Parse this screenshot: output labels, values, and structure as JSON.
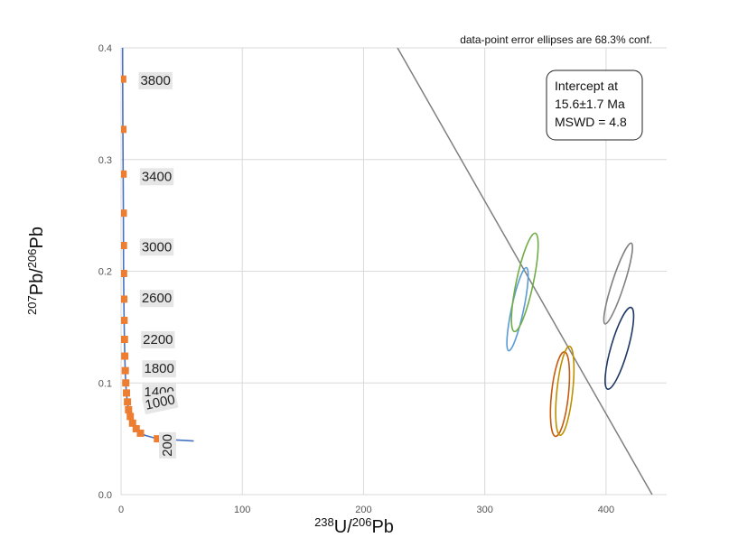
{
  "chart_data": {
    "type": "scatter",
    "title": "",
    "note": "data-point error ellipses are 68.3% conf.",
    "xlabel": {
      "sup1": "238",
      "base1": "U/",
      "sup2": "206",
      "base2": "Pb"
    },
    "ylabel": {
      "sup1": "207",
      "base1": "Pb/",
      "sup2": "206",
      "base2": "Pb"
    },
    "xlim": [
      0,
      450
    ],
    "ylim": [
      0,
      0.4
    ],
    "x_ticks": [
      0,
      100,
      200,
      300,
      400
    ],
    "y_ticks": [
      0.0,
      0.1,
      0.2,
      0.3,
      0.4
    ],
    "y_tick_labels": [
      "0.0",
      "0.1",
      "0.2",
      "0.3",
      "0.4"
    ],
    "grid": true,
    "concordia_curve": {
      "color": "#4472c4",
      "points": [
        [
          1.3,
          0.4
        ],
        [
          1.35,
          0.37
        ],
        [
          1.5,
          0.33
        ],
        [
          1.7,
          0.29
        ],
        [
          1.9,
          0.25
        ],
        [
          2.0,
          0.22
        ],
        [
          2.1,
          0.2
        ],
        [
          2.3,
          0.175
        ],
        [
          2.5,
          0.155
        ],
        [
          2.8,
          0.137
        ],
        [
          3.1,
          0.122
        ],
        [
          3.5,
          0.109
        ],
        [
          3.9,
          0.1
        ],
        [
          4.5,
          0.09
        ],
        [
          5.3,
          0.082
        ],
        [
          6.2,
          0.076
        ],
        [
          7.6,
          0.07
        ],
        [
          9.5,
          0.064
        ],
        [
          12.5,
          0.058
        ],
        [
          16,
          0.055
        ],
        [
          20,
          0.053
        ],
        [
          30,
          0.05
        ],
        [
          45,
          0.049
        ],
        [
          60,
          0.048
        ]
      ]
    },
    "age_markers": {
      "color": "#ed7d31",
      "points": [
        [
          1.35,
          0.372
        ],
        [
          1.5,
          0.327
        ],
        [
          1.7,
          0.287
        ],
        [
          1.9,
          0.252
        ],
        [
          2.0,
          0.223
        ],
        [
          2.1,
          0.198
        ],
        [
          2.3,
          0.175
        ],
        [
          2.5,
          0.156
        ],
        [
          2.8,
          0.139
        ],
        [
          3.1,
          0.124
        ],
        [
          3.5,
          0.111
        ],
        [
          3.9,
          0.1
        ],
        [
          4.5,
          0.091
        ],
        [
          5.3,
          0.083
        ],
        [
          6.2,
          0.076
        ],
        [
          7.6,
          0.07
        ],
        [
          9.5,
          0.064
        ],
        [
          12.5,
          0.059
        ],
        [
          16,
          0.055
        ],
        [
          30,
          0.05
        ]
      ]
    },
    "age_labels": [
      {
        "text": "3800",
        "x": 16,
        "y": 0.371
      },
      {
        "text": "3400",
        "x": 17,
        "y": 0.285
      },
      {
        "text": "3000",
        "x": 17,
        "y": 0.222
      },
      {
        "text": "2600",
        "x": 17,
        "y": 0.176
      },
      {
        "text": "2200",
        "x": 18,
        "y": 0.139
      },
      {
        "text": "1800",
        "x": 19,
        "y": 0.113
      },
      {
        "text": "1400",
        "x": 19,
        "y": 0.092
      },
      {
        "text": "1000",
        "x": 20,
        "y": 0.08,
        "rotate": -12
      },
      {
        "text": "200",
        "x": 38,
        "y": 0.034,
        "rotate": -90
      }
    ],
    "ellipses": [
      {
        "name": "ellipse-1",
        "cx": 327,
        "cy": 0.166,
        "rx": 5,
        "ry": 0.038,
        "tilt_deg": 12,
        "color": "#5b9bd5"
      },
      {
        "name": "ellipse-2",
        "cx": 333,
        "cy": 0.19,
        "rx": 7,
        "ry": 0.045,
        "tilt_deg": 12,
        "color": "#70ad47"
      },
      {
        "name": "ellipse-3",
        "cx": 362,
        "cy": 0.09,
        "rx": 7,
        "ry": 0.038,
        "tilt_deg": 6,
        "color": "#c55a11"
      },
      {
        "name": "ellipse-4",
        "cx": 366,
        "cy": 0.093,
        "rx": 6.5,
        "ry": 0.04,
        "tilt_deg": 6,
        "color": "#bf9000"
      },
      {
        "name": "ellipse-5",
        "cx": 410,
        "cy": 0.189,
        "rx": 5,
        "ry": 0.038,
        "tilt_deg": 18,
        "color": "#7f7f7f"
      },
      {
        "name": "ellipse-6",
        "cx": 411,
        "cy": 0.131,
        "rx": 7,
        "ry": 0.038,
        "tilt_deg": 16,
        "color": "#1f3864"
      }
    ],
    "regression_line": {
      "x1": 228,
      "y1": 0.4,
      "x2": 438,
      "y2": 0.0,
      "color": "#7f7f7f"
    },
    "result_box": {
      "line1": "Intercept at",
      "line2": "15.6±1.7 Ma",
      "line3": "MSWD = 4.8"
    }
  }
}
